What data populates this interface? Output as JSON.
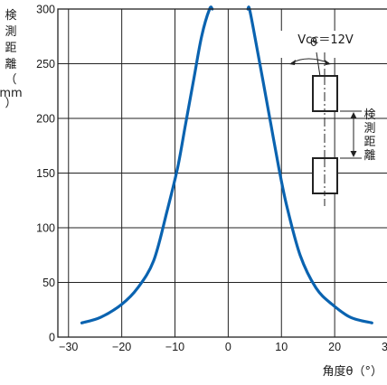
{
  "chart_data": {
    "type": "line",
    "title": "",
    "xlabel": "角度θ（°）",
    "ylabel": [
      "検",
      "測",
      "距",
      "離",
      "（",
      "mm",
      "）"
    ],
    "xlim": [
      -32,
      30
    ],
    "ylim": [
      0,
      300
    ],
    "xticks": [
      -30,
      -20,
      -10,
      0,
      10,
      20,
      30
    ],
    "xtick_labels": [
      "−30",
      "−20",
      "−10",
      "0",
      "10",
      "20",
      "30"
    ],
    "yticks": [
      0,
      50,
      100,
      150,
      200,
      250,
      300
    ],
    "ytick_labels": [
      "0",
      "50",
      "100",
      "150",
      "200",
      "250",
      "300"
    ],
    "grid": true,
    "series": [
      {
        "color": "#0a63b0",
        "x": [
          -27.5,
          -24,
          -20,
          -17,
          -14,
          -11.5,
          -9.5,
          -8,
          -6.5,
          -5,
          -3.5,
          -3
        ],
        "y": [
          13,
          18,
          30,
          45,
          70,
          115,
          155,
          195,
          235,
          275,
          300,
          300
        ]
      },
      {
        "color": "#0a63b0",
        "x": [
          3.7,
          4,
          5,
          6.5,
          8,
          9.5,
          11,
          13.5,
          16.5,
          19.5,
          23,
          27
        ],
        "y": [
          300,
          300,
          275,
          235,
          195,
          155,
          120,
          75,
          45,
          30,
          18,
          13
        ]
      }
    ],
    "annotations": {
      "vcc": "Vcc＝12V",
      "theta": "θ",
      "dist_label": [
        "検",
        "測",
        "距",
        "離"
      ]
    }
  }
}
